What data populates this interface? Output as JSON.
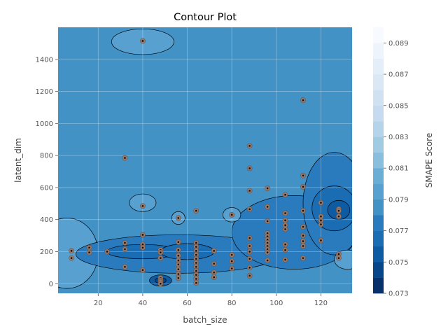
{
  "chart_data": {
    "type": "contour",
    "title": "Contour Plot",
    "xlabel": "batch_size",
    "ylabel": "latent_dim",
    "colorbar_label": "SMAPE Score",
    "xlim": [
      2,
      134
    ],
    "ylim": [
      -60,
      1600
    ],
    "xticks": [
      20,
      40,
      60,
      80,
      100,
      120
    ],
    "yticks": [
      0,
      200,
      400,
      600,
      800,
      1000,
      1200,
      1400
    ],
    "colorbar_ticks": [
      "0.073",
      "0.075",
      "0.077",
      "0.079",
      "0.081",
      "0.083",
      "0.085",
      "0.087",
      "0.089"
    ],
    "colorbar_range": [
      0.073,
      0.09
    ],
    "colorbar_levels": 17,
    "grid": true,
    "background_color": "#4292c6",
    "colors": [
      "#08306b",
      "#08468a",
      "#0d5ba3",
      "#1a6db3",
      "#2a7bbd",
      "#4292c6",
      "#58a0cf",
      "#6aaed6",
      "#89bedc",
      "#a1cbe2",
      "#b5d4e9",
      "#c6dbef",
      "#d0e2f2",
      "#dae8f6",
      "#e3eef9",
      "#edf4fc",
      "#f7fbff"
    ],
    "regions": [
      {
        "level": 6,
        "cx": 6,
        "cy": 190,
        "rx": 14,
        "ry": 220
      },
      {
        "level": 6,
        "cx": 40,
        "cy": 1510,
        "rx": 14,
        "ry": 80
      },
      {
        "level": 6,
        "cx": 40,
        "cy": 505,
        "rx": 6,
        "ry": 55
      },
      {
        "level": 4,
        "cx": 56,
        "cy": 185,
        "rx": 46,
        "ry": 120
      },
      {
        "level": 3,
        "cx": 40,
        "cy": 200,
        "rx": 16,
        "ry": 45
      },
      {
        "level": 3,
        "cx": 60,
        "cy": 200,
        "rx": 12,
        "ry": 50
      },
      {
        "level": 2,
        "cx": 48,
        "cy": 20,
        "rx": 5,
        "ry": 35
      },
      {
        "level": 1,
        "cx": 48,
        "cy": 20,
        "rx": 2.5,
        "ry": 18
      },
      {
        "level": 4,
        "cx": 108,
        "cy": 320,
        "rx": 28,
        "ry": 230
      },
      {
        "level": 4,
        "cx": 126,
        "cy": 500,
        "rx": 14,
        "ry": 320
      },
      {
        "level": 3,
        "cx": 126,
        "cy": 470,
        "rx": 10,
        "ry": 140
      },
      {
        "level": 2,
        "cx": 128,
        "cy": 460,
        "rx": 5,
        "ry": 60
      },
      {
        "level": 6,
        "cx": 56,
        "cy": 410,
        "rx": 3,
        "ry": 40
      },
      {
        "level": 6,
        "cx": 80,
        "cy": 430,
        "rx": 4,
        "ry": 45
      },
      {
        "level": 6,
        "cx": 132,
        "cy": 150,
        "rx": 6,
        "ry": 60
      }
    ],
    "points": [
      [
        8,
        205
      ],
      [
        8,
        160
      ],
      [
        16,
        225
      ],
      [
        16,
        195
      ],
      [
        24,
        200
      ],
      [
        32,
        785
      ],
      [
        32,
        255
      ],
      [
        32,
        215
      ],
      [
        32,
        105
      ],
      [
        40,
        1515
      ],
      [
        40,
        485
      ],
      [
        40,
        305
      ],
      [
        40,
        245
      ],
      [
        40,
        225
      ],
      [
        40,
        85
      ],
      [
        48,
        210
      ],
      [
        48,
        195
      ],
      [
        48,
        160
      ],
      [
        48,
        35
      ],
      [
        48,
        20
      ],
      [
        48,
        10
      ],
      [
        48,
        0
      ],
      [
        56,
        410
      ],
      [
        56,
        260
      ],
      [
        56,
        210
      ],
      [
        56,
        175
      ],
      [
        56,
        145
      ],
      [
        56,
        120
      ],
      [
        56,
        90
      ],
      [
        56,
        60
      ],
      [
        56,
        35
      ],
      [
        64,
        455
      ],
      [
        64,
        255
      ],
      [
        64,
        230
      ],
      [
        64,
        205
      ],
      [
        64,
        180
      ],
      [
        64,
        155
      ],
      [
        64,
        130
      ],
      [
        64,
        105
      ],
      [
        64,
        80
      ],
      [
        64,
        55
      ],
      [
        64,
        30
      ],
      [
        64,
        5
      ],
      [
        72,
        205
      ],
      [
        72,
        125
      ],
      [
        72,
        70
      ],
      [
        72,
        40
      ],
      [
        80,
        430
      ],
      [
        80,
        180
      ],
      [
        80,
        140
      ],
      [
        80,
        95
      ],
      [
        88,
        860
      ],
      [
        88,
        720
      ],
      [
        88,
        580
      ],
      [
        88,
        465
      ],
      [
        88,
        285
      ],
      [
        88,
        235
      ],
      [
        88,
        200
      ],
      [
        88,
        155
      ],
      [
        88,
        100
      ],
      [
        88,
        50
      ],
      [
        96,
        595
      ],
      [
        96,
        480
      ],
      [
        96,
        390
      ],
      [
        96,
        315
      ],
      [
        96,
        295
      ],
      [
        96,
        275
      ],
      [
        96,
        255
      ],
      [
        96,
        235
      ],
      [
        96,
        215
      ],
      [
        96,
        195
      ],
      [
        96,
        145
      ],
      [
        104,
        555
      ],
      [
        104,
        440
      ],
      [
        104,
        395
      ],
      [
        104,
        365
      ],
      [
        104,
        340
      ],
      [
        104,
        245
      ],
      [
        104,
        210
      ],
      [
        104,
        150
      ],
      [
        112,
        1145
      ],
      [
        112,
        675
      ],
      [
        112,
        605
      ],
      [
        112,
        455
      ],
      [
        112,
        355
      ],
      [
        112,
        300
      ],
      [
        112,
        265
      ],
      [
        112,
        235
      ],
      [
        112,
        160
      ],
      [
        120,
        505
      ],
      [
        120,
        420
      ],
      [
        120,
        395
      ],
      [
        120,
        370
      ],
      [
        120,
        270
      ],
      [
        128,
        465
      ],
      [
        128,
        455
      ],
      [
        128,
        420
      ],
      [
        128,
        185
      ],
      [
        128,
        160
      ]
    ]
  }
}
